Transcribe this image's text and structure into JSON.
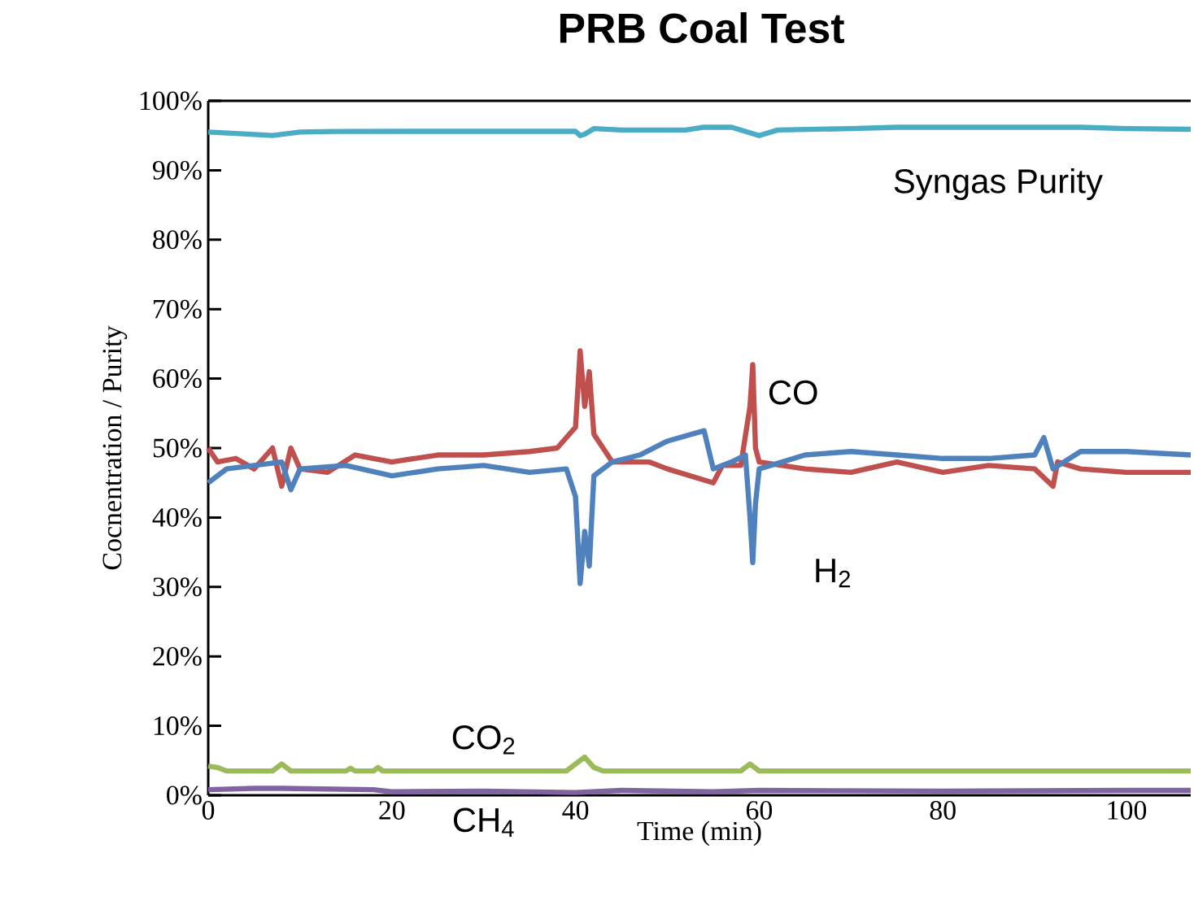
{
  "chart_data": {
    "type": "line",
    "title": "PRB Coal Test",
    "xlabel": "Time (min)",
    "ylabel": "Cocnentration / Purity",
    "xlim": [
      0,
      107
    ],
    "ylim": [
      0,
      100
    ],
    "xticks": [
      0,
      20,
      40,
      60,
      80,
      100
    ],
    "yticks": [
      {
        "value": 0,
        "label": "0%"
      },
      {
        "value": 10,
        "label": "10%"
      },
      {
        "value": 20,
        "label": "20%"
      },
      {
        "value": 30,
        "label": "30%"
      },
      {
        "value": 40,
        "label": "40%"
      },
      {
        "value": 50,
        "label": "50%"
      },
      {
        "value": 60,
        "label": "60%"
      },
      {
        "value": 70,
        "label": "70%"
      },
      {
        "value": 80,
        "label": "80%"
      },
      {
        "value": 90,
        "label": "90%"
      },
      {
        "value": 100,
        "label": "100%"
      }
    ],
    "grid": false,
    "legend": false,
    "marker": "none",
    "line_style": "solid",
    "series": [
      {
        "name": "Syngas Purity",
        "color": "#4bacc6",
        "x": [
          0,
          3,
          7,
          10,
          14,
          40,
          40.5,
          41,
          42,
          45,
          52,
          54,
          57,
          58,
          60,
          62,
          70,
          75,
          90,
          95,
          100,
          107
        ],
        "values": [
          95.5,
          95.3,
          95,
          95.5,
          95.6,
          95.6,
          95,
          95.2,
          96,
          95.8,
          95.8,
          96.2,
          96.2,
          95.8,
          95,
          95.8,
          96,
          96.2,
          96.2,
          96.2,
          96,
          95.9
        ]
      },
      {
        "name": "CO",
        "color": "#c0504d",
        "x": [
          0,
          1,
          3,
          5,
          7,
          8,
          9,
          10,
          13,
          16,
          20,
          25,
          30,
          35,
          38,
          40,
          40.5,
          41,
          41.5,
          42,
          44,
          48,
          50,
          55,
          56,
          58,
          59,
          59.3,
          59.6,
          60,
          65,
          70,
          75,
          80,
          85,
          90,
          92,
          92.5,
          95,
          100,
          107
        ],
        "values": [
          50,
          48,
          48.5,
          47,
          50,
          44.5,
          50,
          47,
          46.5,
          49,
          48,
          49,
          49,
          49.5,
          50,
          53,
          64,
          56,
          61,
          52,
          48,
          48,
          47,
          45,
          47.5,
          47.5,
          56,
          62,
          50,
          48,
          47,
          46.5,
          48,
          46.5,
          47.5,
          47,
          44.5,
          48,
          47,
          46.5,
          46.5
        ]
      },
      {
        "name": "H$_{2}$",
        "color": "#4f81bd",
        "x": [
          0,
          2,
          5,
          8,
          9,
          10,
          15,
          20,
          25,
          30,
          35,
          39,
          40,
          40.5,
          41,
          41.5,
          42,
          44,
          47,
          50,
          54,
          55,
          57,
          58.5,
          59,
          59.3,
          59.6,
          60,
          65,
          70,
          75,
          80,
          85,
          90,
          91,
          92,
          95,
          100,
          107
        ],
        "values": [
          45,
          47,
          47.5,
          48,
          44,
          47,
          47.5,
          46,
          47,
          47.5,
          46.5,
          47,
          43,
          30.5,
          38,
          33,
          46,
          48,
          49,
          51,
          52.5,
          47,
          48,
          49,
          40,
          33.5,
          42,
          47,
          49,
          49.5,
          49,
          48.5,
          48.5,
          49,
          51.5,
          47,
          49.5,
          49.5,
          49
        ]
      },
      {
        "name": "CO$_{2}$",
        "color": "#9bbb59",
        "x": [
          0,
          1,
          2,
          7,
          8,
          9,
          15,
          15.5,
          16,
          18,
          18.5,
          19,
          39,
          41,
          42,
          43,
          58,
          59,
          60,
          107
        ],
        "values": [
          4.2,
          4,
          3.5,
          3.5,
          4.5,
          3.5,
          3.5,
          3.9,
          3.5,
          3.5,
          4,
          3.5,
          3.5,
          5.5,
          4,
          3.5,
          3.5,
          4.5,
          3.5,
          3.5
        ]
      },
      {
        "name": "CH$_{4}$",
        "color": "#8064a2",
        "x": [
          0,
          5,
          8,
          18,
          20,
          30,
          40,
          45,
          55,
          60,
          80,
          100,
          107
        ],
        "values": [
          0.8,
          1,
          1,
          0.8,
          0.5,
          0.6,
          0.4,
          0.7,
          0.5,
          0.7,
          0.6,
          0.7,
          0.7
        ]
      }
    ]
  }
}
